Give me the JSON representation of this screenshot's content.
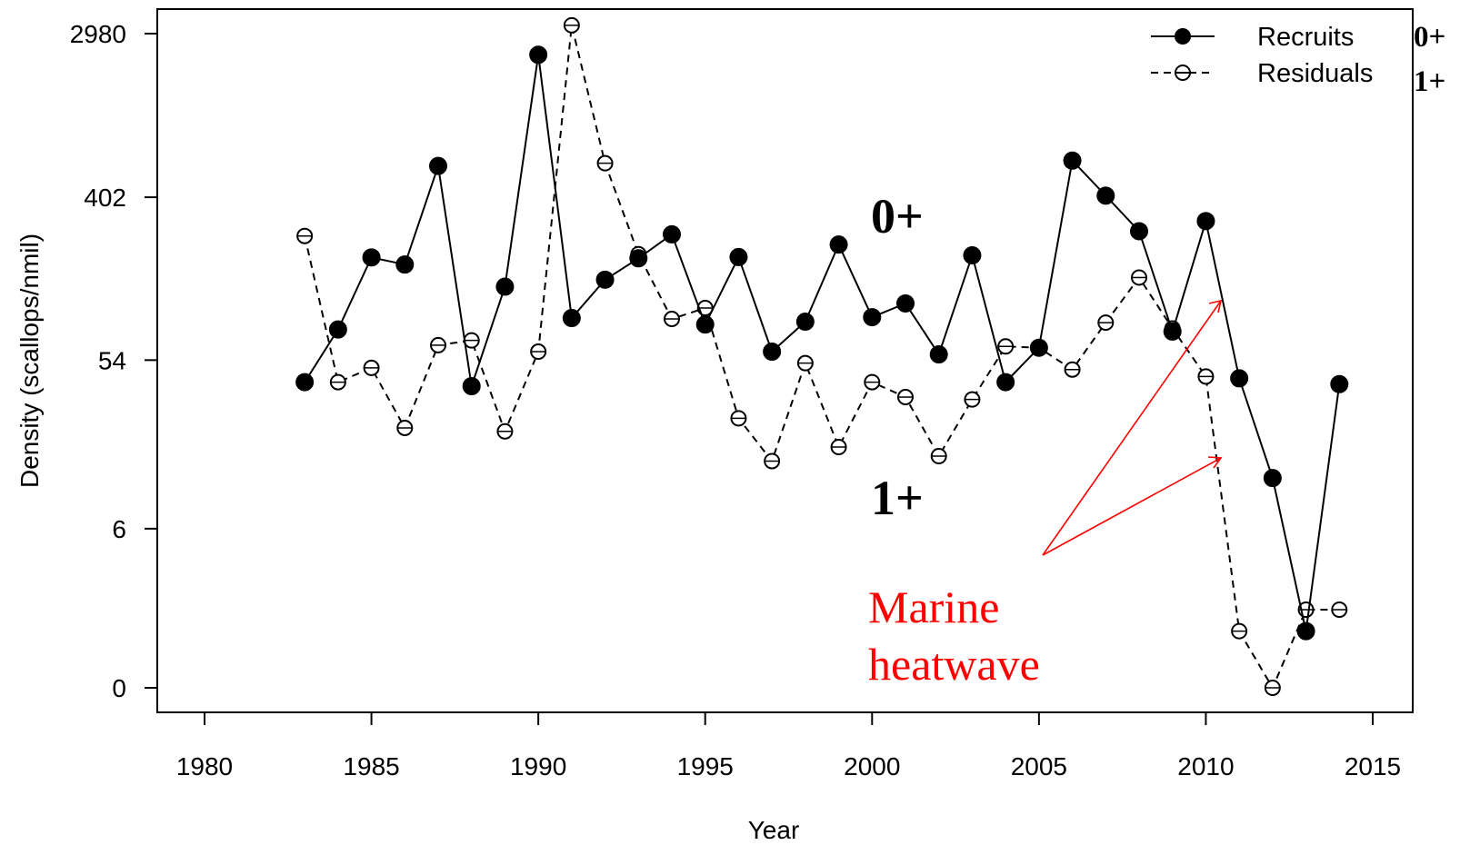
{
  "chart_data": {
    "type": "line",
    "xlabel": "Year",
    "ylabel": "Density (scallops/nmil)",
    "x_ticks": [
      1980,
      1985,
      1990,
      1995,
      2000,
      2005,
      2010,
      2015
    ],
    "x_tick_labels": [
      "1980",
      "1985",
      "1990",
      "1995",
      "2000",
      "2005",
      "2010",
      "2015"
    ],
    "xlim": [
      1979,
      2016.5
    ],
    "y_scale": "log(1+y)",
    "y_ticks": [
      0,
      6,
      54,
      402,
      2980
    ],
    "y_tick_labels": [
      "0",
      "6",
      "54",
      "402",
      "2980"
    ],
    "ylim": [
      0,
      3500
    ],
    "legend_position": "top-right",
    "series": [
      {
        "name": "Recruits",
        "line_style": "solid",
        "marker": "filled-circle",
        "color": "#000000",
        "x": [
          1983,
          1984,
          1985,
          1986,
          1987,
          1988,
          1989,
          1990,
          1991,
          1992,
          1993,
          1994,
          1995,
          1996,
          1997,
          1998,
          1999,
          2000,
          2001,
          2002,
          2003,
          2004,
          2005,
          2006,
          2007,
          2008,
          2009,
          2010,
          2011,
          2012,
          2013,
          2014
        ],
        "values": [
          41,
          79,
          192,
          176,
          590,
          39,
          134,
          2300,
          91,
          146,
          190,
          255,
          84,
          193,
          60,
          87,
          225,
          92,
          109,
          58,
          197,
          41,
          63,
          630,
          410,
          265,
          77,
          300,
          43,
          12,
          1,
          40
        ]
      },
      {
        "name": "Residuals",
        "line_style": "dashed",
        "marker": "open-circle-with-line",
        "color": "#000000",
        "x": [
          1983,
          1984,
          1985,
          1986,
          1987,
          1988,
          1989,
          1990,
          1991,
          1992,
          1993,
          1994,
          1995,
          1996,
          1997,
          1998,
          1999,
          2000,
          2001,
          2002,
          2003,
          2004,
          2005,
          2006,
          2007,
          2008,
          2009,
          2010,
          2011,
          2012,
          2013,
          2014
        ],
        "values": [
          250,
          41,
          49,
          23,
          65,
          69,
          22,
          60,
          3300,
          610,
          200,
          90,
          103,
          26,
          15,
          52,
          18,
          41,
          34,
          16,
          33,
          64,
          63,
          48,
          86,
          150,
          80,
          44,
          1.0,
          0,
          1.6,
          1.6
        ]
      }
    ],
    "annotations": [
      {
        "text": "0+"
      },
      {
        "text": "1+"
      },
      {
        "text_lines": [
          "Marine",
          "heatwave"
        ],
        "color": "#ff0000",
        "arrows_to": [
          2010.5,
          2010.5
        ]
      }
    ],
    "corner_labels": [
      "0+",
      "1+"
    ]
  }
}
